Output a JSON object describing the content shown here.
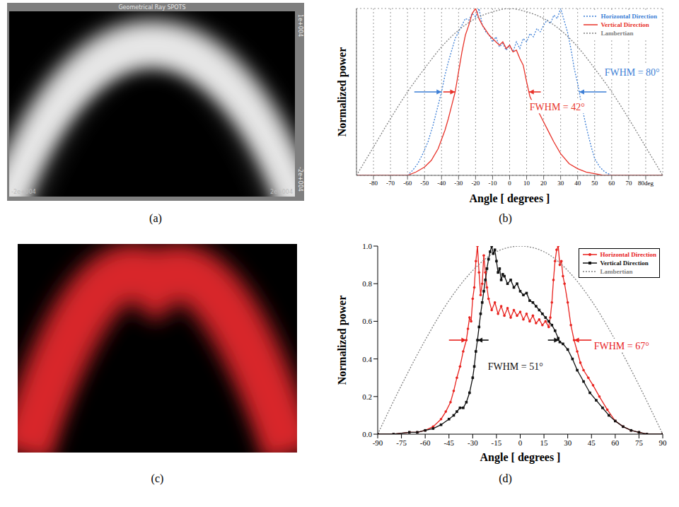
{
  "images": [
    {
      "label": "(a)",
      "title": "Geometrical Ray SPOTS",
      "x_edge_labels": [
        "-2e+004",
        "2e+004"
      ],
      "y_edge_labels": [
        "1e+004",
        "-2e+004"
      ]
    },
    {
      "label": "(c)"
    }
  ],
  "chart_data": [
    {
      "label": "(b)",
      "type": "line",
      "x_label": "Angle [ degrees ]",
      "y_label": "Normalized power",
      "xlim": [
        -90,
        90
      ],
      "xticks": [
        -80,
        -70,
        -60,
        -50,
        -40,
        -30,
        -20,
        -10,
        0,
        10,
        20,
        30,
        40,
        50,
        60,
        70,
        {
          "value": 80,
          "label": "80deg"
        }
      ],
      "ylim": [
        0,
        1
      ],
      "yticks": [
        0,
        0.5,
        1
      ],
      "grid": true,
      "tick_labels": "x",
      "legend": "upper right",
      "series": [
        {
          "name": "Horizontal Direction",
          "color": "#3d7fd6",
          "line_style": "dotted",
          "x": [
            -90,
            -60,
            -57,
            -54,
            -51,
            -48,
            -45,
            -42,
            -40,
            -38,
            -36,
            -34,
            -32,
            -30,
            -28,
            -26,
            -24,
            -22,
            -20,
            -18,
            -16,
            -14,
            -12,
            -10,
            -8,
            -6,
            -4,
            -2,
            0,
            2,
            4,
            6,
            8,
            10,
            12,
            14,
            16,
            18,
            20,
            22,
            24,
            26,
            28,
            30,
            32,
            34,
            36,
            38,
            40,
            42,
            44,
            46,
            48,
            50,
            53,
            56,
            60,
            90
          ],
          "values": [
            0,
            0,
            0.03,
            0.07,
            0.13,
            0.2,
            0.3,
            0.42,
            0.5,
            0.6,
            0.68,
            0.75,
            0.82,
            0.86,
            0.9,
            0.94,
            0.93,
            0.97,
            0.95,
            1.0,
            0.9,
            0.86,
            0.84,
            0.8,
            0.83,
            0.77,
            0.79,
            0.75,
            0.78,
            0.74,
            0.8,
            0.76,
            0.82,
            0.8,
            0.85,
            0.83,
            0.88,
            0.86,
            0.9,
            0.93,
            0.91,
            0.96,
            0.94,
            1.0,
            0.93,
            0.86,
            0.76,
            0.64,
            0.55,
            0.44,
            0.34,
            0.25,
            0.17,
            0.1,
            0.05,
            0.02,
            0,
            0
          ]
        },
        {
          "name": "Vertical Direction",
          "color": "#e8332a",
          "line_style": "solid",
          "x": [
            -90,
            -60,
            -55,
            -50,
            -46,
            -42,
            -38,
            -36,
            -34,
            -32,
            -30,
            -28,
            -26,
            -24,
            -22,
            -20,
            -18,
            -16,
            -14,
            -12,
            -10,
            -8,
            -6,
            -4,
            -2,
            0,
            2,
            4,
            6,
            8,
            10,
            12,
            14,
            16,
            18,
            20,
            23,
            26,
            30,
            35,
            40,
            45,
            50,
            55,
            60,
            90
          ],
          "values": [
            0,
            0,
            0.02,
            0.05,
            0.09,
            0.16,
            0.27,
            0.34,
            0.42,
            0.5,
            0.62,
            0.74,
            0.84,
            0.9,
            0.97,
            1.0,
            0.94,
            0.9,
            0.87,
            0.84,
            0.82,
            0.8,
            0.78,
            0.8,
            0.76,
            0.78,
            0.74,
            0.75,
            0.7,
            0.66,
            0.56,
            0.47,
            0.43,
            0.4,
            0.36,
            0.32,
            0.26,
            0.2,
            0.13,
            0.07,
            0.04,
            0.02,
            0.01,
            0,
            0,
            0
          ]
        },
        {
          "name": "Lambertian",
          "color": "#808080",
          "line_style": "dotted",
          "x": [
            -90,
            -80,
            -70,
            -60,
            -50,
            -40,
            -30,
            -20,
            -10,
            0,
            10,
            20,
            30,
            40,
            50,
            60,
            70,
            80,
            90
          ],
          "values": [
            0,
            0.17,
            0.34,
            0.5,
            0.64,
            0.77,
            0.87,
            0.94,
            0.98,
            1,
            0.98,
            0.94,
            0.87,
            0.77,
            0.64,
            0.5,
            0.34,
            0.17,
            0
          ]
        }
      ],
      "annotations": [
        {
          "text": "FWHM = 80°",
          "series": "Horizontal Direction"
        },
        {
          "text": "FWHM = 42°",
          "series": "Vertical Direction"
        }
      ]
    },
    {
      "label": "(d)",
      "type": "line",
      "x_label": "Angle [ degrees ]",
      "y_label": "Normalized power",
      "xlim": [
        -90,
        90
      ],
      "xticks": [
        -90,
        -75,
        -60,
        -45,
        -30,
        -15,
        0,
        15,
        30,
        45,
        60,
        75,
        90
      ],
      "ylim": [
        0,
        1
      ],
      "yticks": [
        {
          "value": 0,
          "label": "0.0"
        },
        0.2,
        0.4,
        0.6,
        0.8,
        {
          "value": 1,
          "label": "1.0"
        }
      ],
      "grid": false,
      "legend": "upper right",
      "series": [
        {
          "name": "Horizontal Direction",
          "color": "#e8231f",
          "line_style": "solid",
          "marker": "circle",
          "x": [
            -90,
            -80,
            -70,
            -65,
            -60,
            -55,
            -50,
            -47,
            -44,
            -42,
            -40,
            -38,
            -36,
            -34,
            -33,
            -32,
            -31,
            -30,
            -29,
            -28,
            -27,
            -26,
            -25,
            -24,
            -23,
            -22,
            -21,
            -20,
            -18,
            -16,
            -14,
            -12,
            -10,
            -8,
            -6,
            -4,
            -2,
            0,
            2,
            4,
            6,
            8,
            10,
            12,
            14,
            16,
            18,
            19,
            20,
            21,
            22,
            23,
            24,
            25,
            26,
            27,
            28,
            30,
            32,
            34,
            36,
            38,
            40,
            43,
            46,
            50,
            55,
            60,
            65,
            70,
            75,
            80,
            90
          ],
          "values": [
            0,
            0,
            0.01,
            0.01,
            0.02,
            0.04,
            0.08,
            0.12,
            0.17,
            0.23,
            0.3,
            0.36,
            0.44,
            0.5,
            0.56,
            0.62,
            0.6,
            0.72,
            0.78,
            0.92,
            1.0,
            0.86,
            0.74,
            0.8,
            0.95,
            0.86,
            0.78,
            0.72,
            0.66,
            0.7,
            0.64,
            0.68,
            0.63,
            0.67,
            0.62,
            0.66,
            0.63,
            0.65,
            0.61,
            0.64,
            0.6,
            0.63,
            0.59,
            0.61,
            0.58,
            0.6,
            0.57,
            0.62,
            0.7,
            0.82,
            0.92,
            0.98,
            1.0,
            0.9,
            0.92,
            0.84,
            0.8,
            0.7,
            0.58,
            0.5,
            0.44,
            0.38,
            0.34,
            0.3,
            0.26,
            0.2,
            0.13,
            0.07,
            0.04,
            0.02,
            0.01,
            0,
            0
          ]
        },
        {
          "name": "Vertical Direction",
          "color": "#111111",
          "line_style": "solid",
          "marker": "square",
          "x": [
            -90,
            -80,
            -70,
            -65,
            -60,
            -55,
            -50,
            -45,
            -42,
            -40,
            -38,
            -36,
            -34,
            -32,
            -30,
            -29,
            -28,
            -27,
            -26,
            -25,
            -24,
            -23,
            -22,
            -21,
            -20,
            -19,
            -18,
            -17,
            -16,
            -15,
            -14,
            -13,
            -12,
            -11,
            -10,
            -8,
            -6,
            -4,
            -2,
            0,
            2,
            4,
            6,
            8,
            10,
            12,
            14,
            16,
            18,
            20,
            22,
            24,
            25,
            27,
            30,
            33,
            36,
            40,
            44,
            48,
            52,
            56,
            60,
            65,
            70,
            75,
            80,
            90
          ],
          "values": [
            0,
            0,
            0.01,
            0.01,
            0.02,
            0.03,
            0.05,
            0.08,
            0.1,
            0.12,
            0.14,
            0.14,
            0.17,
            0.22,
            0.3,
            0.36,
            0.44,
            0.5,
            0.57,
            0.64,
            0.7,
            0.76,
            0.82,
            0.88,
            0.93,
            0.97,
            1.0,
            0.96,
            0.98,
            0.92,
            0.86,
            0.88,
            0.82,
            0.85,
            0.84,
            0.8,
            0.82,
            0.78,
            0.8,
            0.76,
            0.74,
            0.75,
            0.71,
            0.7,
            0.68,
            0.66,
            0.64,
            0.62,
            0.6,
            0.58,
            0.55,
            0.51,
            0.49,
            0.48,
            0.45,
            0.4,
            0.34,
            0.28,
            0.22,
            0.18,
            0.14,
            0.1,
            0.07,
            0.04,
            0.02,
            0.01,
            0,
            0
          ]
        },
        {
          "name": "Lambertian",
          "color": "#808080",
          "line_style": "dotted",
          "x": [
            -90,
            -75,
            -60,
            -45,
            -30,
            -15,
            0,
            15,
            30,
            45,
            60,
            75,
            90
          ],
          "values": [
            0,
            0.26,
            0.5,
            0.71,
            0.87,
            0.97,
            1,
            0.97,
            0.87,
            0.71,
            0.5,
            0.26,
            0
          ]
        }
      ],
      "annotations": [
        {
          "text": "FWHM = 67°",
          "series": "Horizontal Direction"
        },
        {
          "text": "FWHM = 51°",
          "series": "Vertical Direction"
        }
      ]
    }
  ]
}
